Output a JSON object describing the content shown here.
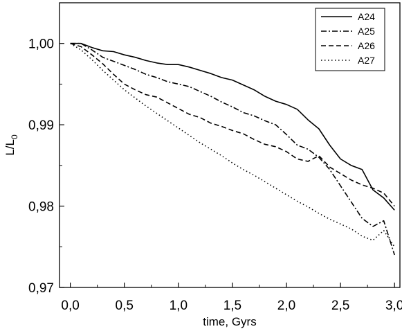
{
  "chart_data": {
    "type": "line",
    "xlabel": "time, Gyrs",
    "ylabel_main": "L/L",
    "ylabel_subscript": "0",
    "xlim": [
      -0.1,
      3.05
    ],
    "ylim": [
      0.97,
      1.005
    ],
    "x_ticks": [
      0.0,
      0.5,
      1.0,
      1.5,
      2.0,
      2.5,
      3.0
    ],
    "x_tick_labels": [
      "0,0",
      "0,5",
      "1,0",
      "1,5",
      "2,0",
      "2,5",
      "3,0"
    ],
    "y_ticks": [
      0.97,
      0.98,
      0.99,
      1.0
    ],
    "y_tick_labels": [
      "0,97",
      "0,98",
      "0,99",
      "1,00"
    ],
    "legend_position": "top-right",
    "series": [
      {
        "name": "A24",
        "style": "solid",
        "x": [
          0.0,
          0.1,
          0.2,
          0.3,
          0.4,
          0.5,
          0.6,
          0.7,
          0.8,
          0.9,
          1.0,
          1.1,
          1.2,
          1.3,
          1.4,
          1.5,
          1.6,
          1.7,
          1.8,
          1.9,
          2.0,
          2.1,
          2.2,
          2.3,
          2.4,
          2.5,
          2.6,
          2.7,
          2.8,
          2.9,
          3.0
        ],
        "y": [
          1.0,
          1.0,
          0.9995,
          0.9991,
          0.999,
          0.9986,
          0.9983,
          0.9979,
          0.9976,
          0.9974,
          0.9974,
          0.9971,
          0.9967,
          0.9963,
          0.9958,
          0.9955,
          0.9949,
          0.9943,
          0.9935,
          0.9929,
          0.9925,
          0.9919,
          0.9906,
          0.9895,
          0.9875,
          0.9858,
          0.985,
          0.9845,
          0.982,
          0.981,
          0.9795
        ]
      },
      {
        "name": "A25",
        "style": "dashdot",
        "x": [
          0.0,
          0.1,
          0.2,
          0.3,
          0.4,
          0.5,
          0.6,
          0.7,
          0.8,
          0.9,
          1.0,
          1.1,
          1.2,
          1.3,
          1.4,
          1.5,
          1.6,
          1.7,
          1.8,
          1.9,
          2.0,
          2.1,
          2.2,
          2.3,
          2.4,
          2.5,
          2.6,
          2.7,
          2.8,
          2.9,
          3.0
        ],
        "y": [
          1.0,
          1.0,
          0.9992,
          0.9983,
          0.9978,
          0.9973,
          0.9968,
          0.9962,
          0.9958,
          0.9953,
          0.995,
          0.9947,
          0.9941,
          0.9935,
          0.9928,
          0.9922,
          0.9915,
          0.9911,
          0.9905,
          0.99,
          0.9888,
          0.9875,
          0.987,
          0.986,
          0.9845,
          0.9825,
          0.9805,
          0.9785,
          0.9775,
          0.9782,
          0.974
        ]
      },
      {
        "name": "A26",
        "style": "dashed",
        "x": [
          0.0,
          0.1,
          0.2,
          0.3,
          0.4,
          0.5,
          0.6,
          0.7,
          0.8,
          0.9,
          1.0,
          1.1,
          1.2,
          1.3,
          1.4,
          1.5,
          1.6,
          1.7,
          1.8,
          1.9,
          2.0,
          2.1,
          2.2,
          2.3,
          2.4,
          2.5,
          2.6,
          2.7,
          2.8,
          2.9,
          3.0
        ],
        "y": [
          1.0,
          0.9996,
          0.9986,
          0.9975,
          0.9962,
          0.995,
          0.9943,
          0.9937,
          0.9934,
          0.9927,
          0.992,
          0.9913,
          0.9909,
          0.9902,
          0.9898,
          0.9893,
          0.9889,
          0.9882,
          0.9876,
          0.9873,
          0.9867,
          0.9858,
          0.9855,
          0.9862,
          0.9848,
          0.984,
          0.9832,
          0.9826,
          0.9822,
          0.9816,
          0.98
        ]
      },
      {
        "name": "A27",
        "style": "dotted",
        "x": [
          0.0,
          0.1,
          0.2,
          0.3,
          0.4,
          0.5,
          0.6,
          0.7,
          0.8,
          0.9,
          1.0,
          1.1,
          1.2,
          1.3,
          1.4,
          1.5,
          1.6,
          1.7,
          1.8,
          1.9,
          2.0,
          2.1,
          2.2,
          2.3,
          2.4,
          2.5,
          2.6,
          2.7,
          2.8,
          2.9,
          3.0
        ],
        "y": [
          1.0,
          0.9992,
          0.998,
          0.9967,
          0.9955,
          0.9943,
          0.9933,
          0.9923,
          0.9914,
          0.9905,
          0.9896,
          0.9887,
          0.9878,
          0.987,
          0.9862,
          0.9853,
          0.9845,
          0.9838,
          0.983,
          0.9822,
          0.9814,
          0.9806,
          0.9799,
          0.9791,
          0.9784,
          0.9778,
          0.9772,
          0.9763,
          0.9758,
          0.977,
          0.975
        ]
      }
    ]
  }
}
